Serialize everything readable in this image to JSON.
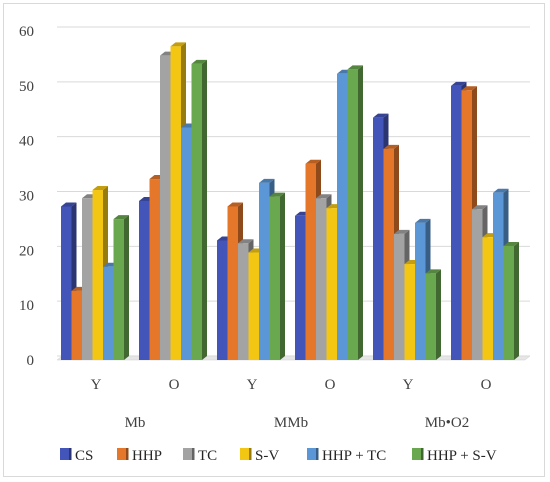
{
  "chart_data": {
    "type": "bar",
    "groups": [
      "Mb",
      "MMb",
      "Mb•O2"
    ],
    "categories": [
      "Y",
      "O",
      "Y",
      "O",
      "Y",
      "O"
    ],
    "series": [
      {
        "name": "CS",
        "color": "#4355b8",
        "values": [
          28.0,
          29.0,
          21.8,
          26.3,
          44.2,
          50.0
        ]
      },
      {
        "name": "HHP",
        "color": "#e5772b",
        "values": [
          12.6,
          33.0,
          28.0,
          35.8,
          38.5,
          49.2
        ]
      },
      {
        "name": "TC",
        "color": "#a3a3a3",
        "values": [
          29.5,
          55.5,
          21.3,
          29.5,
          23.0,
          27.5
        ]
      },
      {
        "name": "S-V",
        "color": "#f3c614",
        "values": [
          31.0,
          57.2,
          19.6,
          27.7,
          17.5,
          22.4
        ]
      },
      {
        "name": "HHP + TC",
        "color": "#5b97d6",
        "values": [
          17.0,
          42.4,
          32.3,
          52.2,
          25.0,
          30.5
        ]
      },
      {
        "name": "HHP +  S-V",
        "color": "#6aa84f",
        "values": [
          25.7,
          54.0,
          29.8,
          53.0,
          15.8,
          20.8
        ]
      }
    ],
    "yticks": [
      "0",
      "10",
      "20",
      "30",
      "40",
      "50",
      "60"
    ],
    "ylim": [
      0,
      60
    ],
    "grid": true,
    "legend": "bottom"
  }
}
